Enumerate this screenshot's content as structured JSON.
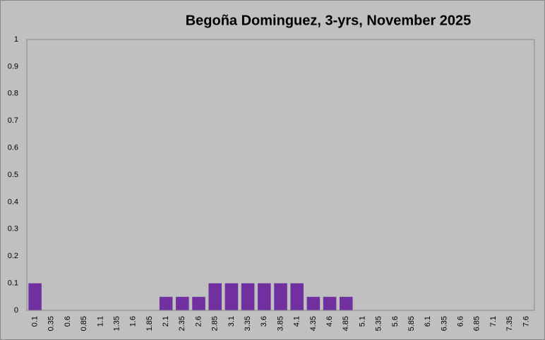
{
  "chart_data": {
    "type": "bar",
    "title": "Begoña Dominguez, 3-yrs, November 2025",
    "categories": [
      "0.1",
      "0.35",
      "0.6",
      "0.85",
      "1.1",
      "1.35",
      "1.6",
      "1.85",
      "2.1",
      "2.35",
      "2.6",
      "2.85",
      "3.1",
      "3.35",
      "3.6",
      "3.85",
      "4.1",
      "4.35",
      "4.6",
      "4.85",
      "5.1",
      "5.35",
      "5.6",
      "5.85",
      "6.1",
      "6.35",
      "6.6",
      "6.85",
      "7.1",
      "7.35",
      "7.6"
    ],
    "values": [
      0.1,
      0,
      0,
      0,
      0,
      0,
      0,
      0,
      0.05,
      0.05,
      0.05,
      0.1,
      0.1,
      0.1,
      0.1,
      0.1,
      0.1,
      0.05,
      0.05,
      0.05,
      0,
      0,
      0,
      0,
      0,
      0,
      0,
      0,
      0,
      0,
      0
    ],
    "color": "#7030a0",
    "ylim": [
      0,
      1
    ],
    "yticks": [
      0,
      0.1,
      0.2,
      0.3,
      0.4,
      0.5,
      0.6,
      0.7,
      0.8,
      0.9,
      1
    ],
    "grid": false
  }
}
